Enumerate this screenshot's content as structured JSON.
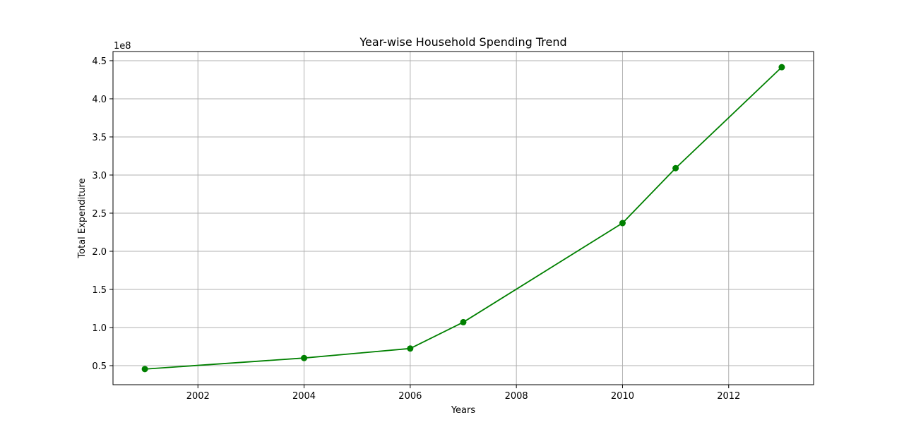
{
  "chart_data": {
    "type": "line",
    "title": "Year-wise Household Spending Trend",
    "xlabel": "Years",
    "ylabel": "Total Expenditure",
    "y_offset_label": "1e8",
    "x": [
      2001,
      2004,
      2006,
      2007,
      2010,
      2011,
      2013
    ],
    "series": [
      {
        "values": [
          45500000,
          60000000,
          72500000,
          107000000,
          237000000,
          309000000,
          441500000
        ],
        "color": "#008000",
        "marker": "circle"
      }
    ],
    "xlim": [
      2000.4,
      2013.6
    ],
    "ylim": [
      25000000,
      462000000
    ],
    "x_ticks": [
      2002,
      2004,
      2006,
      2008,
      2010,
      2012
    ],
    "x_tick_labels": [
      "2002",
      "2004",
      "2006",
      "2008",
      "2010",
      "2012"
    ],
    "y_ticks": [
      50000000,
      100000000,
      150000000,
      200000000,
      250000000,
      300000000,
      350000000,
      400000000,
      450000000
    ],
    "y_tick_labels": [
      "0.5",
      "1.0",
      "1.5",
      "2.0",
      "2.5",
      "3.0",
      "3.5",
      "4.0",
      "4.5"
    ],
    "grid": true,
    "grid_color": "#b0b0b0"
  }
}
